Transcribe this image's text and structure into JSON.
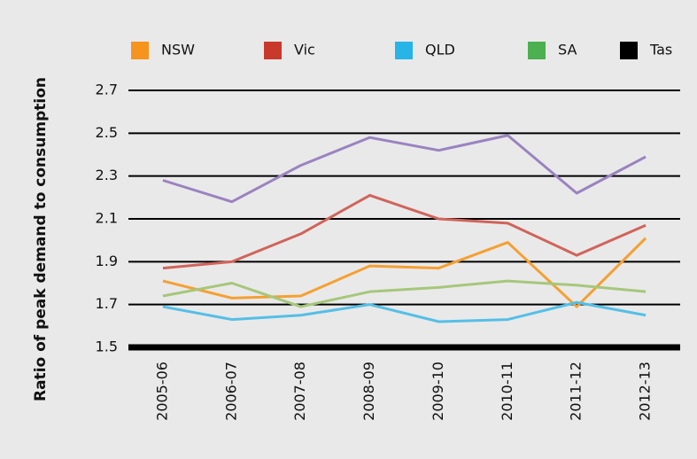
{
  "chart_data": {
    "type": "line",
    "y_label": "Ratio of peak demand to consumption",
    "categories": [
      "2005-06",
      "2006-07",
      "2007-08",
      "2008-09",
      "2009-10",
      "2010-11",
      "2011-12",
      "2012-13"
    ],
    "series": [
      {
        "name": "NSW",
        "color": "#f7941d",
        "line_color": "#f5a032",
        "values": [
          1.81,
          1.73,
          1.74,
          1.88,
          1.87,
          1.99,
          1.69,
          2.01
        ]
      },
      {
        "name": "Vic",
        "color": "#c8392b",
        "line_color": "#d0645a",
        "values": [
          1.87,
          1.9,
          2.03,
          2.21,
          2.1,
          2.08,
          1.93,
          2.07
        ]
      },
      {
        "name": "QLD",
        "color": "#27b4e6",
        "line_color": "#55bfe6",
        "values": [
          1.69,
          1.63,
          1.65,
          1.7,
          1.62,
          1.63,
          1.71,
          1.65
        ]
      },
      {
        "name": "SA",
        "color": "#4caf50",
        "line_color": "#a6c77a",
        "values": [
          1.74,
          1.8,
          1.69,
          1.76,
          1.78,
          1.81,
          1.79,
          1.76
        ]
      },
      {
        "name": "Tas",
        "color": "#000000",
        "line_color": "#9a83c0",
        "values": [
          2.28,
          2.18,
          2.35,
          2.48,
          2.42,
          2.49,
          2.22,
          2.39
        ]
      }
    ],
    "ylim": [
      1.5,
      2.7
    ],
    "yticks": [
      1.5,
      1.7,
      1.9,
      2.1,
      2.3,
      2.5,
      2.7
    ],
    "grid": true
  }
}
